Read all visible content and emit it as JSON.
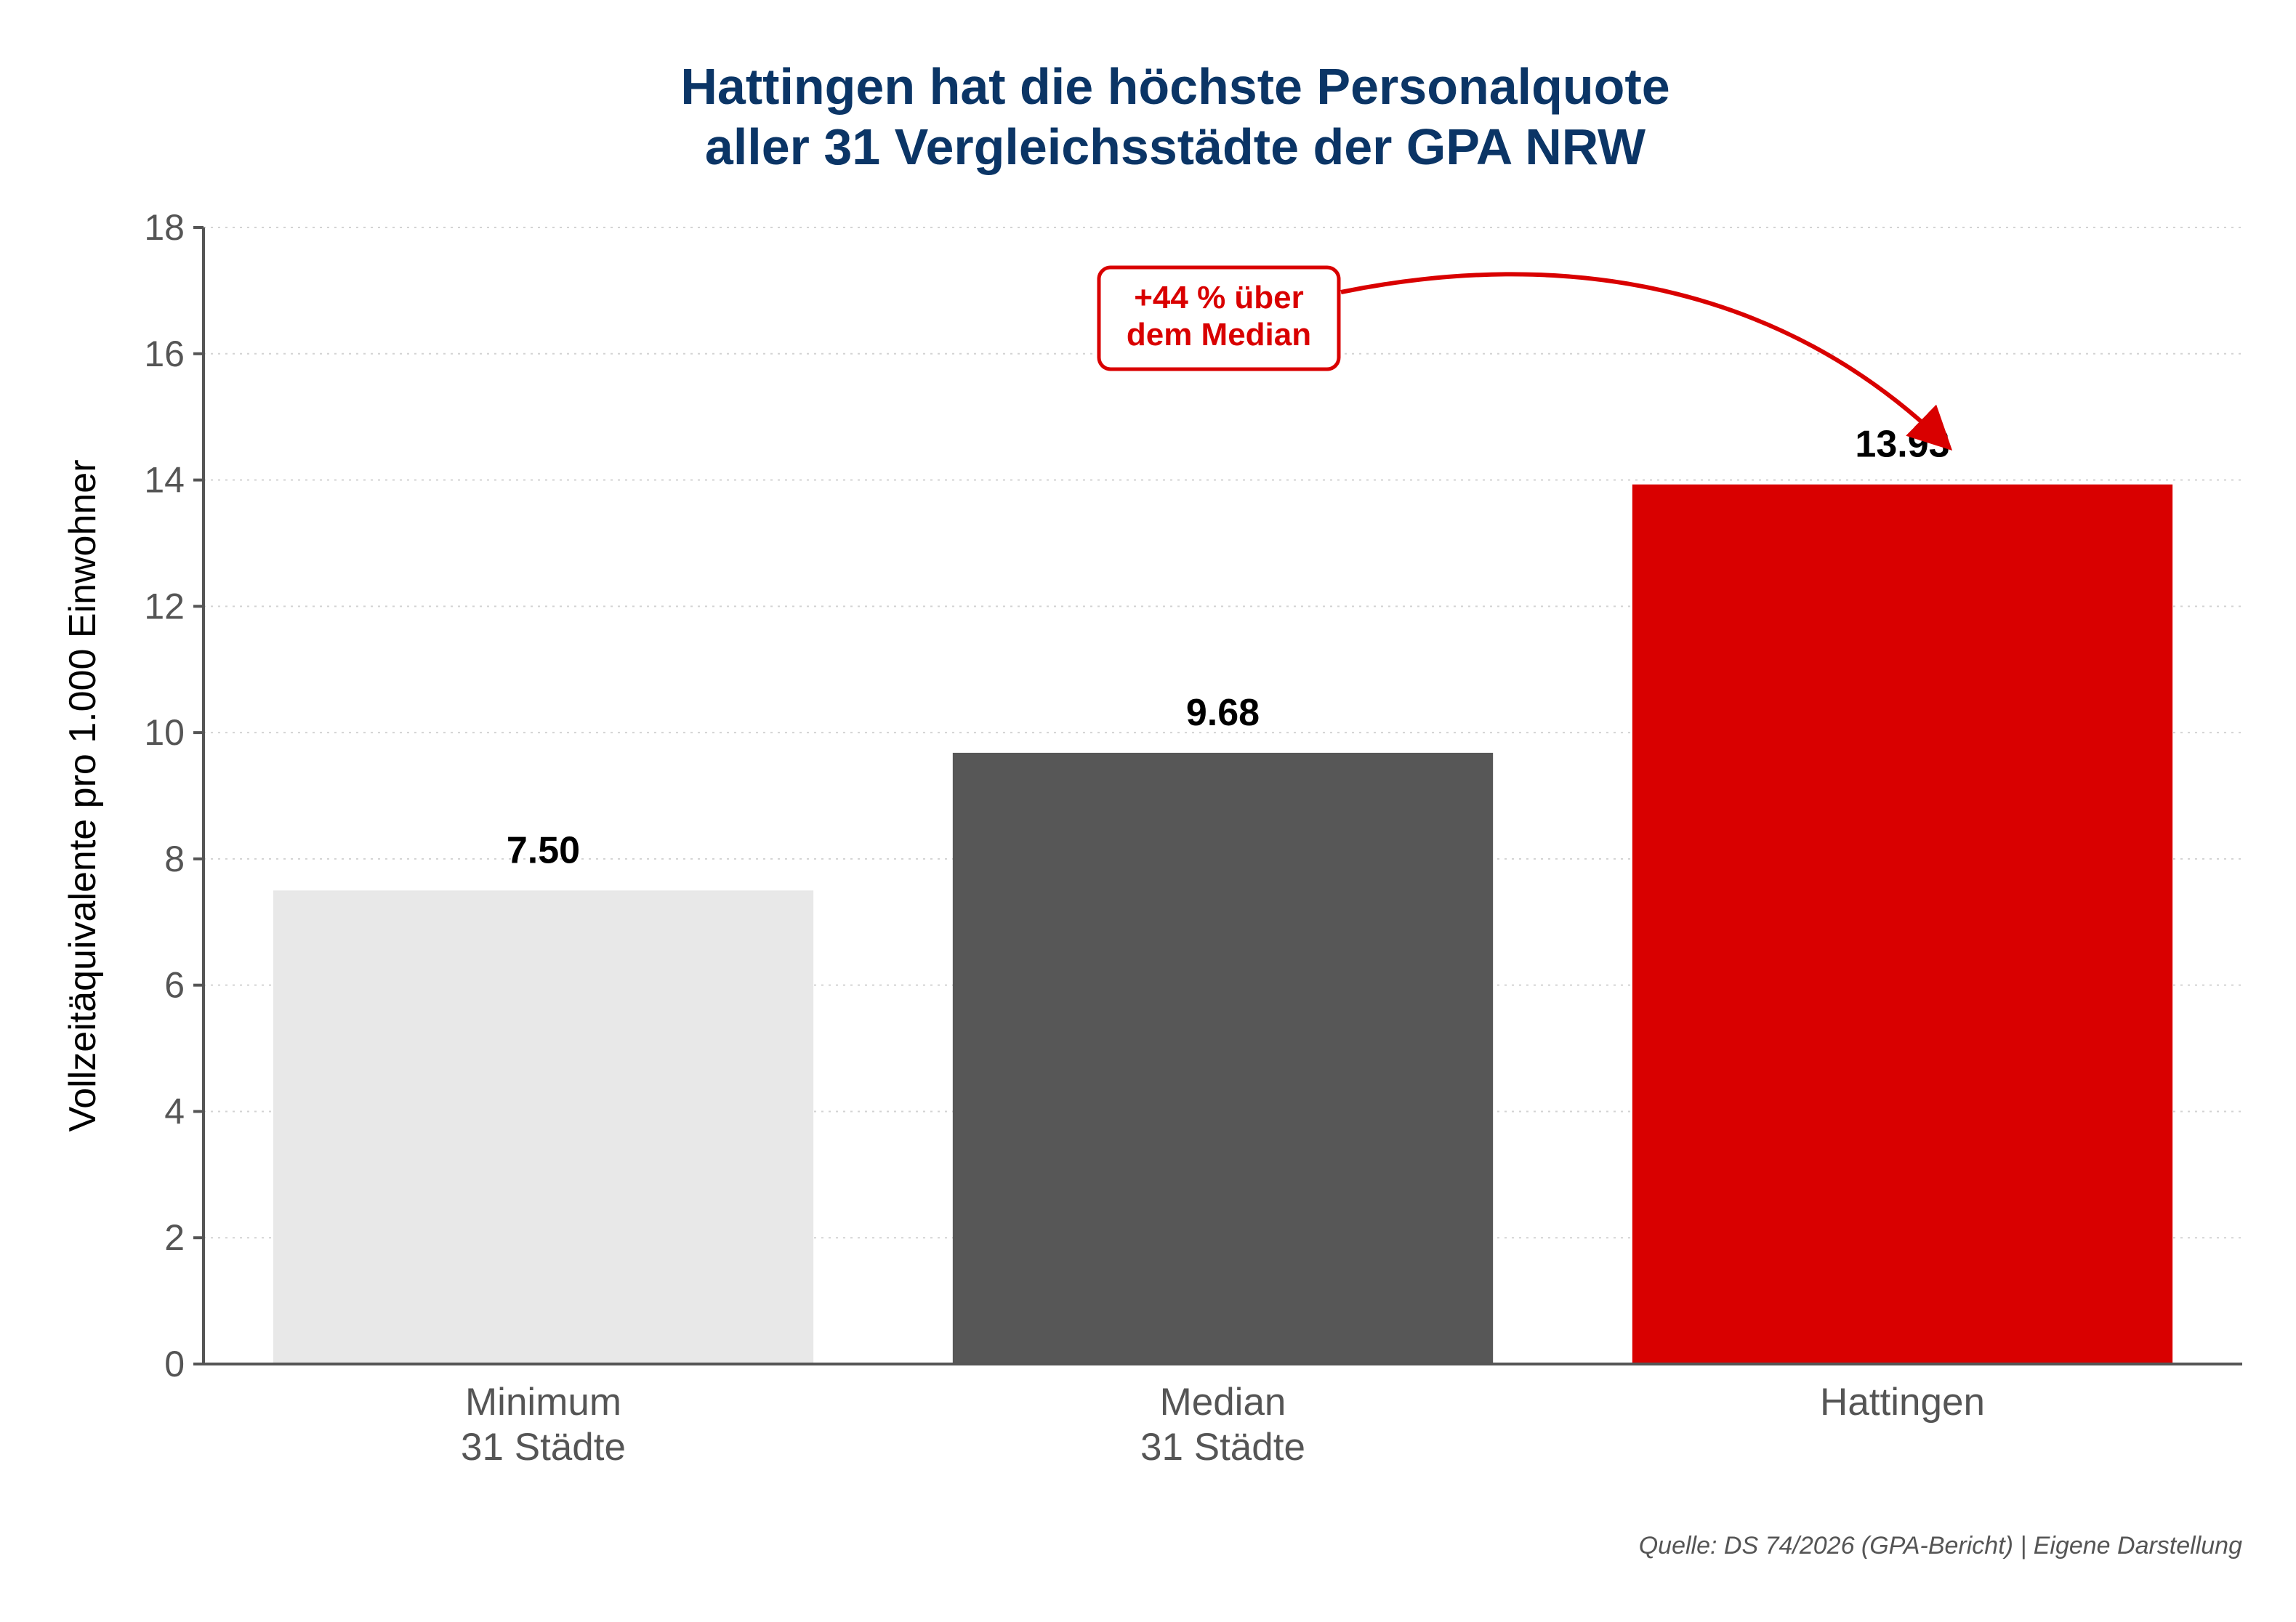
{
  "chart_data": {
    "type": "bar",
    "title_lines": [
      "Hattingen hat die höchste Personalquote",
      "aller 31 Vergleichsstädte der GPA NRW"
    ],
    "xlabel": "",
    "ylabel": "Vollzeitäquivalente pro 1.000 Einwohner",
    "ylim": [
      0,
      18
    ],
    "yticks": [
      0,
      2,
      4,
      6,
      8,
      10,
      12,
      14,
      16,
      18
    ],
    "grid": "horizontal-dotted",
    "categories": [
      [
        "Minimum",
        "31 Städte"
      ],
      [
        "Median",
        "31 Städte"
      ],
      [
        "Hattingen"
      ]
    ],
    "values": [
      7.5,
      9.68,
      13.93
    ],
    "value_labels": [
      "7.50",
      "9.68",
      "13.93"
    ],
    "bar_colors": [
      "#e8e8e8",
      "#575757",
      "#d90000"
    ],
    "annotation": {
      "lines": [
        "+44 % über",
        "dem Median"
      ],
      "color": "#d90000",
      "target_category_index": 2
    },
    "source": "Quelle: DS 74/2026 (GPA-Bericht) | Eigene Darstellung"
  },
  "colors": {
    "title": "#0b3566",
    "axis": "#555555",
    "tick_text": "#555555",
    "grid": "#d3d3d3",
    "value_text": "#000000",
    "ylabel_text": "#000000",
    "source_text": "#555555"
  }
}
